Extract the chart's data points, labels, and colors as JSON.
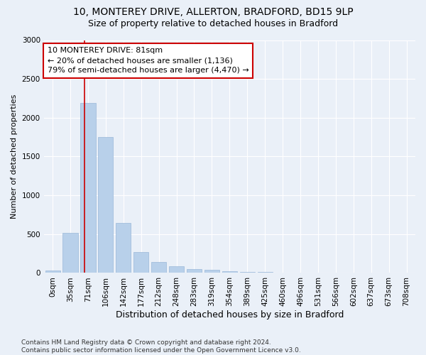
{
  "title_line1": "10, MONTEREY DRIVE, ALLERTON, BRADFORD, BD15 9LP",
  "title_line2": "Size of property relative to detached houses in Bradford",
  "xlabel": "Distribution of detached houses by size in Bradford",
  "ylabel": "Number of detached properties",
  "footnote": "Contains HM Land Registry data © Crown copyright and database right 2024.\nContains public sector information licensed under the Open Government Licence v3.0.",
  "bar_labels": [
    "0sqm",
    "35sqm",
    "71sqm",
    "106sqm",
    "142sqm",
    "177sqm",
    "212sqm",
    "248sqm",
    "283sqm",
    "319sqm",
    "354sqm",
    "389sqm",
    "425sqm",
    "460sqm",
    "496sqm",
    "531sqm",
    "566sqm",
    "602sqm",
    "637sqm",
    "673sqm",
    "708sqm"
  ],
  "bar_values": [
    28,
    520,
    2195,
    1750,
    640,
    270,
    145,
    82,
    52,
    42,
    22,
    12,
    10,
    8,
    5,
    3,
    2,
    2,
    1,
    1,
    1
  ],
  "bar_color": "#b8d0ea",
  "bar_edge_color": "#9ab8d8",
  "vline_color": "#cc0000",
  "annotation_line1": "10 MONTEREY DRIVE: 81sqm",
  "annotation_line2": "← 20% of detached houses are smaller (1,136)",
  "annotation_line3": "79% of semi-detached houses are larger (4,470) →",
  "annotation_box_color": "#ffffff",
  "annotation_box_edge_color": "#cc0000",
  "ylim": [
    0,
    3000
  ],
  "yticks": [
    0,
    500,
    1000,
    1500,
    2000,
    2500,
    3000
  ],
  "bg_color": "#eaf0f8",
  "title1_fontsize": 10,
  "title2_fontsize": 9,
  "xlabel_fontsize": 9,
  "ylabel_fontsize": 8,
  "tick_fontsize": 7.5,
  "annotation_fontsize": 8,
  "footnote_fontsize": 6.5
}
